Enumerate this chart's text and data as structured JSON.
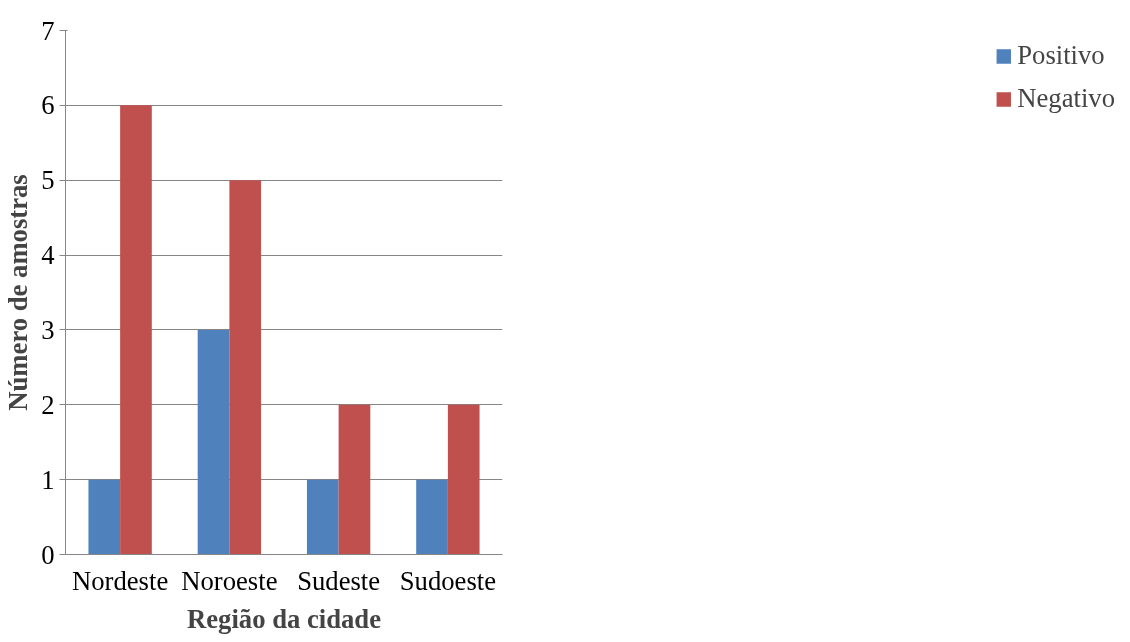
{
  "chart_data": {
    "type": "bar",
    "categories": [
      "Nordeste",
      "Noroeste",
      "Sudeste",
      "Sudoeste"
    ],
    "series": [
      {
        "name": "Positivo",
        "color": "#4f81bd",
        "values": [
          1,
          3,
          1,
          1
        ]
      },
      {
        "name": "Negativo",
        "color": "#c0504d",
        "values": [
          6,
          5,
          2,
          2
        ]
      }
    ],
    "xlabel": "Região da cidade",
    "ylabel": "Número de amostras",
    "ylim": [
      0,
      7
    ],
    "yticks": [
      0,
      1,
      2,
      3,
      4,
      5,
      6,
      7
    ],
    "grid": "y",
    "legend": "right"
  }
}
